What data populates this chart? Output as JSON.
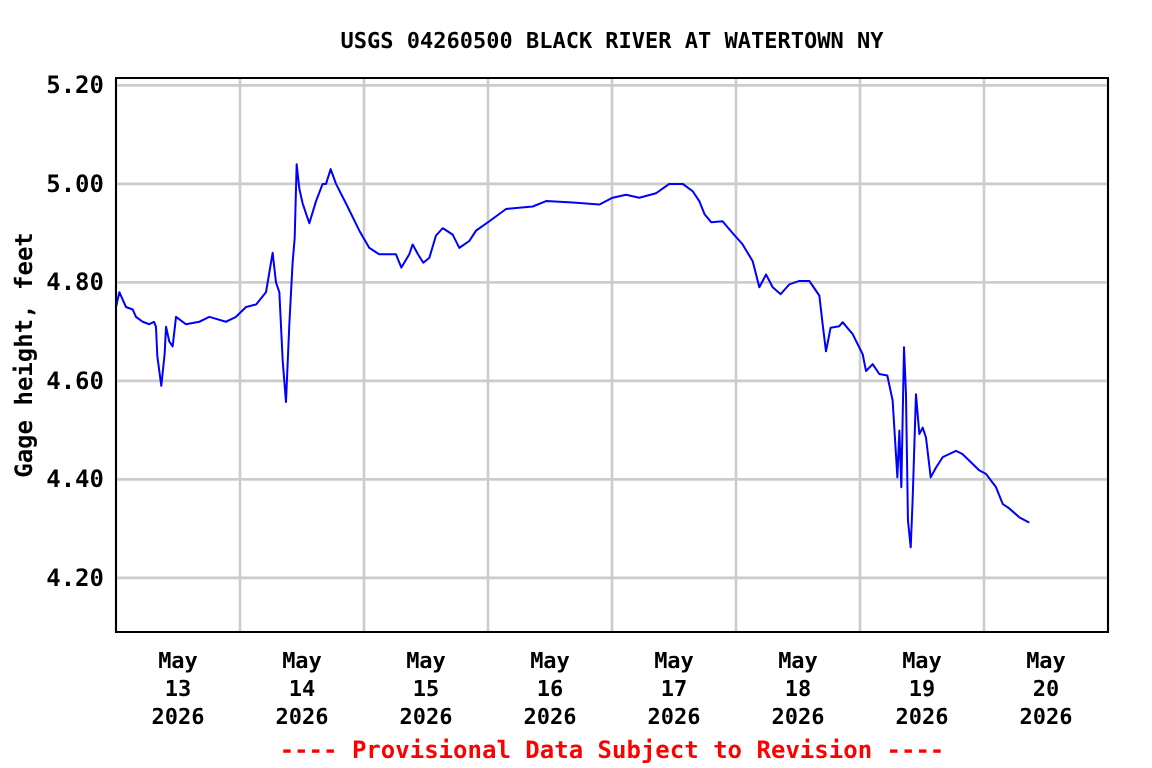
{
  "chart_data": {
    "type": "line",
    "title": "USGS 04260500 BLACK RIVER AT WATERTOWN NY",
    "ylabel": "Gage height, feet",
    "annotations": [
      "---- Provisional Data Subject to Revision ----"
    ],
    "x": [
      "2026-05-13T00:00",
      "2026-05-13T00:39",
      "2026-05-13T01:56",
      "2026-05-13T03:14",
      "2026-05-13T03:52",
      "2026-05-13T05:10",
      "2026-05-13T06:27",
      "2026-05-13T07:21",
      "2026-05-13T07:44",
      "2026-05-13T08:00",
      "2026-05-13T08:46",
      "2026-05-13T09:25",
      "2026-05-13T09:41",
      "2026-05-13T10:19",
      "2026-05-13T10:58",
      "2026-05-13T11:37",
      "2026-05-13T13:33",
      "2026-05-13T16:08",
      "2026-05-13T18:04",
      "2026-05-13T21:17",
      "2026-05-13T23:14",
      "2026-05-14T01:10",
      "2026-05-14T03:06",
      "2026-05-14T05:02",
      "2026-05-14T06:19",
      "2026-05-14T06:58",
      "2026-05-14T07:37",
      "2026-05-14T08:16",
      "2026-05-14T08:54",
      "2026-05-14T09:33",
      "2026-05-14T10:11",
      "2026-05-14T10:35",
      "2026-05-14T10:58",
      "2026-05-14T11:29",
      "2026-05-14T12:08",
      "2026-05-14T13:25",
      "2026-05-14T14:43",
      "2026-05-14T16:00",
      "2026-05-14T16:39",
      "2026-05-14T17:33",
      "2026-05-14T18:35",
      "2026-05-14T20:31",
      "2026-05-14T23:06",
      "2026-05-15T01:02",
      "2026-05-15T02:58",
      "2026-05-15T06:11",
      "2026-05-15T07:14",
      "2026-05-15T08:46",
      "2026-05-15T09:25",
      "2026-05-15T10:27",
      "2026-05-15T11:29",
      "2026-05-15T12:39",
      "2026-05-15T13:56",
      "2026-05-15T15:14",
      "2026-05-15T17:10",
      "2026-05-15T18:27",
      "2026-05-15T20:23",
      "2026-05-15T21:41",
      "2026-05-16T00:16",
      "2026-05-16T03:29",
      "2026-05-16T08:39",
      "2026-05-16T11:14",
      "2026-05-16T16:23",
      "2026-05-16T21:33",
      "2026-05-16T22:50",
      "2026-05-17T00:08",
      "2026-05-17T02:43",
      "2026-05-17T05:17",
      "2026-05-17T08:31",
      "2026-05-17T11:06",
      "2026-05-17T13:41",
      "2026-05-17T15:37",
      "2026-05-17T16:54",
      "2026-05-17T17:56",
      "2026-05-17T19:14",
      "2026-05-17T21:25",
      "2026-05-17T23:21",
      "2026-05-18T01:17",
      "2026-05-18T03:14",
      "2026-05-18T04:31",
      "2026-05-18T05:49",
      "2026-05-18T07:06",
      "2026-05-18T08:39",
      "2026-05-18T10:19",
      "2026-05-18T12:16",
      "2026-05-18T14:11",
      "2026-05-18T16:08",
      "2026-05-18T16:46",
      "2026-05-18T17:25",
      "2026-05-18T18:19",
      "2026-05-18T20:00",
      "2026-05-18T20:39",
      "2026-05-18T22:35",
      "2026-05-19T00:31",
      "2026-05-19T01:10",
      "2026-05-19T02:27",
      "2026-05-19T03:44",
      "2026-05-19T05:17",
      "2026-05-19T06:19",
      "2026-05-19T07:14",
      "2026-05-19T07:37",
      "2026-05-19T08:00",
      "2026-05-19T08:31",
      "2026-05-19T08:54",
      "2026-05-19T09:17",
      "2026-05-19T09:49",
      "2026-05-19T10:11",
      "2026-05-19T10:50",
      "2026-05-19T11:29",
      "2026-05-19T12:08",
      "2026-05-19T12:46",
      "2026-05-19T13:41",
      "2026-05-19T14:43",
      "2026-05-19T16:00",
      "2026-05-19T18:35",
      "2026-05-19T19:52",
      "2026-05-19T21:49",
      "2026-05-19T23:06",
      "2026-05-20T00:23",
      "2026-05-20T02:19",
      "2026-05-20T03:37",
      "2026-05-20T04:54",
      "2026-05-20T06:50",
      "2026-05-20T08:46"
    ],
    "series": [
      {
        "color": "#0000ff",
        "values": [
          4.75,
          4.78,
          4.75,
          4.745,
          4.73,
          4.72,
          4.715,
          4.72,
          4.71,
          4.65,
          4.59,
          4.655,
          4.71,
          4.68,
          4.67,
          4.73,
          4.715,
          4.72,
          4.73,
          4.72,
          4.73,
          4.75,
          4.755,
          4.78,
          4.86,
          4.8,
          4.78,
          4.64,
          4.557,
          4.715,
          4.84,
          4.89,
          5.04,
          4.99,
          4.96,
          4.92,
          4.965,
          5.0,
          5.0,
          5.03,
          5.0,
          4.96,
          4.905,
          4.87,
          4.857,
          4.857,
          4.83,
          4.857,
          4.877,
          4.857,
          4.84,
          4.85,
          4.895,
          4.91,
          4.897,
          4.87,
          4.884,
          4.905,
          4.924,
          4.949,
          4.954,
          4.965,
          4.962,
          4.958,
          4.965,
          4.972,
          4.978,
          4.972,
          4.981,
          5.0,
          5.0,
          4.985,
          4.965,
          4.938,
          4.922,
          4.924,
          4.9,
          4.877,
          4.843,
          4.79,
          4.816,
          4.79,
          4.776,
          4.796,
          4.803,
          4.803,
          4.773,
          4.715,
          4.66,
          4.708,
          4.711,
          4.719,
          4.695,
          4.654,
          4.62,
          4.634,
          4.614,
          4.611,
          4.56,
          4.404,
          4.499,
          4.384,
          4.668,
          4.573,
          4.316,
          4.262,
          4.357,
          4.573,
          4.492,
          4.505,
          4.485,
          4.404,
          4.424,
          4.445,
          4.458,
          4.451,
          4.431,
          4.418,
          4.411,
          4.384,
          4.35,
          4.341,
          4.323,
          4.312
        ]
      }
    ],
    "xlim": [
      "2026-05-13",
      "2026-05-21"
    ],
    "xticks": [
      {
        "value": "2026-05-13",
        "label": null
      },
      {
        "value": "2026-05-13T12:00",
        "label": "May\n13\n2026"
      },
      {
        "value": "2026-05-14",
        "label": null
      },
      {
        "value": "2026-05-14T12:00",
        "label": "May\n14\n2026"
      },
      {
        "value": "2026-05-15",
        "label": null
      },
      {
        "value": "2026-05-15T12:00",
        "label": "May\n15\n2026"
      },
      {
        "value": "2026-05-16",
        "label": null
      },
      {
        "value": "2026-05-16T12:00",
        "label": "May\n16\n2026"
      },
      {
        "value": "2026-05-17",
        "label": null
      },
      {
        "value": "2026-05-17T12:00",
        "label": "May\n17\n2026"
      },
      {
        "value": "2026-05-18",
        "label": null
      },
      {
        "value": "2026-05-18T12:00",
        "label": "May\n18\n2026"
      },
      {
        "value": "2026-05-19",
        "label": null
      },
      {
        "value": "2026-05-19T12:00",
        "label": "May\n19\n2026"
      },
      {
        "value": "2026-05-20",
        "label": null
      },
      {
        "value": "2026-05-20T12:00",
        "label": "May\n20\n2026"
      },
      {
        "value": "2026-05-21",
        "label": null
      }
    ],
    "ylim": [
      4.09,
      5.215
    ],
    "yticks": [
      {
        "value": 4.2,
        "label": "4.20"
      },
      {
        "value": 4.4,
        "label": "4.40"
      },
      {
        "value": 4.6,
        "label": "4.60"
      },
      {
        "value": 4.8,
        "label": "4.80"
      },
      {
        "value": 5.0,
        "label": "5.00"
      },
      {
        "value": 5.2,
        "label": "5.20"
      }
    ],
    "grid": true,
    "marker": "none",
    "line_style": "solid"
  }
}
